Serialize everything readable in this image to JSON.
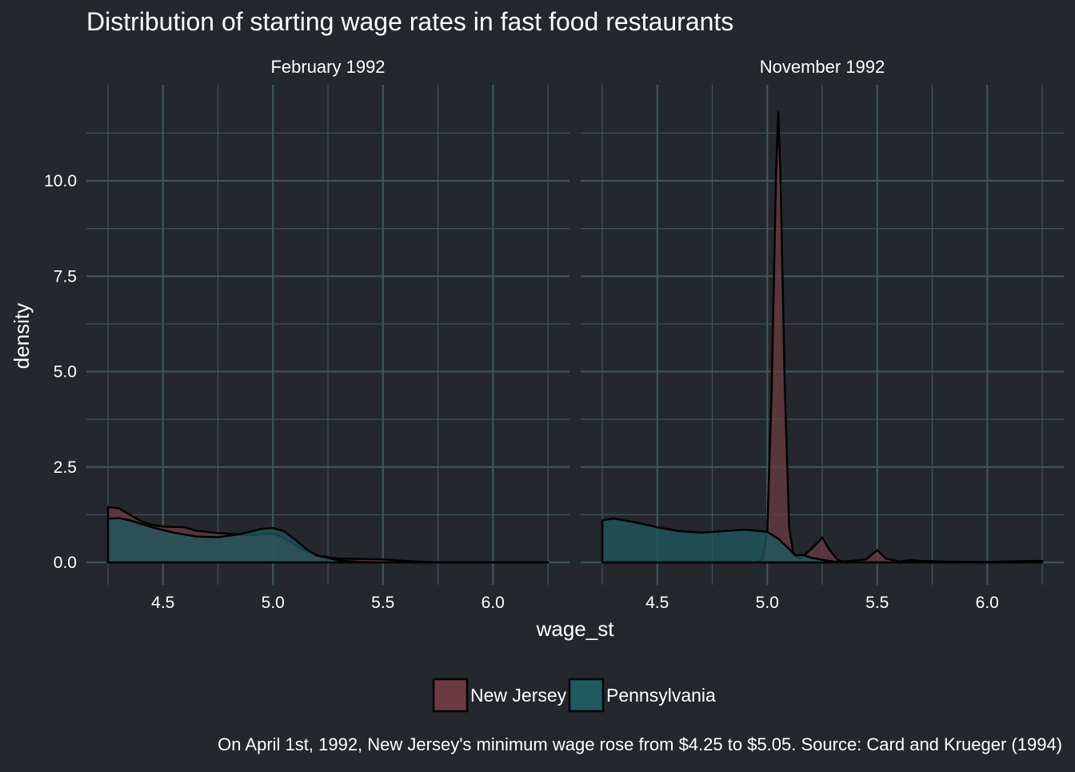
{
  "chart_data": {
    "type": "area",
    "subtype": "density",
    "title": "Distribution of starting wage rates in fast food restaurants",
    "xlabel": "wage_st",
    "ylabel": "density",
    "caption": "On April 1st, 1992, New Jersey's minimum wage rose from $4.25 to $5.05. Source: Card and Krueger (1994)",
    "xlim": [
      4.25,
      6.25
    ],
    "ylim": [
      0,
      12
    ],
    "x_ticks": [
      4.5,
      5.0,
      5.5,
      6.0
    ],
    "x_tick_labels": [
      "4.5",
      "5.0",
      "5.5",
      "6.0"
    ],
    "y_ticks": [
      0,
      2.5,
      5,
      7.5,
      10
    ],
    "y_tick_labels": [
      "0.0",
      "2.5",
      "5.0",
      "7.5",
      "10.0"
    ],
    "grid": true,
    "legend_position": "bottom",
    "colors": {
      "background": "#24282d",
      "grid": "#3f555a",
      "outline": "#000000",
      "text": "#ffffff",
      "New Jersey": "#6b3b40",
      "Pennsylvania": "#1e5a60"
    },
    "legend": [
      {
        "name": "New Jersey",
        "color": "#6b3b40"
      },
      {
        "name": "Pennsylvania",
        "color": "#1e5a60"
      }
    ],
    "panels": [
      {
        "label": "February 1992",
        "series": [
          {
            "name": "New Jersey",
            "points": [
              [
                4.25,
                1.45
              ],
              [
                4.3,
                1.42
              ],
              [
                4.35,
                1.25
              ],
              [
                4.4,
                1.08
              ],
              [
                4.45,
                0.98
              ],
              [
                4.5,
                0.94
              ],
              [
                4.6,
                0.92
              ],
              [
                4.65,
                0.83
              ],
              [
                4.75,
                0.77
              ],
              [
                4.85,
                0.73
              ],
              [
                4.9,
                0.72
              ],
              [
                4.95,
                0.74
              ],
              [
                5.0,
                0.76
              ],
              [
                5.05,
                0.64
              ],
              [
                5.1,
                0.46
              ],
              [
                5.15,
                0.3
              ],
              [
                5.2,
                0.18
              ],
              [
                5.3,
                0.1
              ],
              [
                5.4,
                0.09
              ],
              [
                5.5,
                0.08
              ],
              [
                5.6,
                0.04
              ],
              [
                5.7,
                0.01
              ],
              [
                5.8,
                0.0
              ],
              [
                6.25,
                0.0
              ]
            ]
          },
          {
            "name": "Pennsylvania",
            "points": [
              [
                4.25,
                1.15
              ],
              [
                4.3,
                1.16
              ],
              [
                4.35,
                1.1
              ],
              [
                4.45,
                0.92
              ],
              [
                4.55,
                0.78
              ],
              [
                4.65,
                0.68
              ],
              [
                4.75,
                0.66
              ],
              [
                4.85,
                0.74
              ],
              [
                4.95,
                0.88
              ],
              [
                5.0,
                0.9
              ],
              [
                5.05,
                0.82
              ],
              [
                5.1,
                0.6
              ],
              [
                5.15,
                0.36
              ],
              [
                5.2,
                0.18
              ],
              [
                5.3,
                0.05
              ],
              [
                5.4,
                0.01
              ],
              [
                5.5,
                0.0
              ],
              [
                6.25,
                0.0
              ]
            ]
          }
        ]
      },
      {
        "label": "November 1992",
        "series": [
          {
            "name": "New Jersey",
            "points": [
              [
                4.25,
                0.0
              ],
              [
                4.95,
                0.0
              ],
              [
                4.98,
                0.1
              ],
              [
                5.0,
                0.8
              ],
              [
                5.02,
                4.5
              ],
              [
                5.04,
                10.2
              ],
              [
                5.05,
                11.8
              ],
              [
                5.06,
                10.2
              ],
              [
                5.08,
                4.5
              ],
              [
                5.1,
                0.9
              ],
              [
                5.12,
                0.18
              ],
              [
                5.15,
                0.1
              ],
              [
                5.2,
                0.35
              ],
              [
                5.25,
                0.65
              ],
              [
                5.28,
                0.35
              ],
              [
                5.32,
                0.06
              ],
              [
                5.35,
                0.02
              ],
              [
                5.45,
                0.08
              ],
              [
                5.5,
                0.32
              ],
              [
                5.54,
                0.1
              ],
              [
                5.6,
                0.02
              ],
              [
                5.65,
                0.06
              ],
              [
                5.7,
                0.04
              ],
              [
                5.8,
                0.02
              ],
              [
                6.0,
                0.01
              ],
              [
                6.2,
                0.04
              ],
              [
                6.25,
                0.04
              ]
            ]
          },
          {
            "name": "Pennsylvania",
            "points": [
              [
                4.25,
                1.1
              ],
              [
                4.3,
                1.15
              ],
              [
                4.4,
                1.05
              ],
              [
                4.5,
                0.92
              ],
              [
                4.6,
                0.82
              ],
              [
                4.7,
                0.78
              ],
              [
                4.8,
                0.82
              ],
              [
                4.9,
                0.86
              ],
              [
                5.0,
                0.8
              ],
              [
                5.05,
                0.62
              ],
              [
                5.1,
                0.35
              ],
              [
                5.13,
                0.18
              ],
              [
                5.16,
                0.2
              ],
              [
                5.2,
                0.12
              ],
              [
                5.3,
                0.02
              ],
              [
                5.4,
                0.0
              ],
              [
                6.25,
                0.0
              ]
            ]
          }
        ]
      }
    ]
  }
}
